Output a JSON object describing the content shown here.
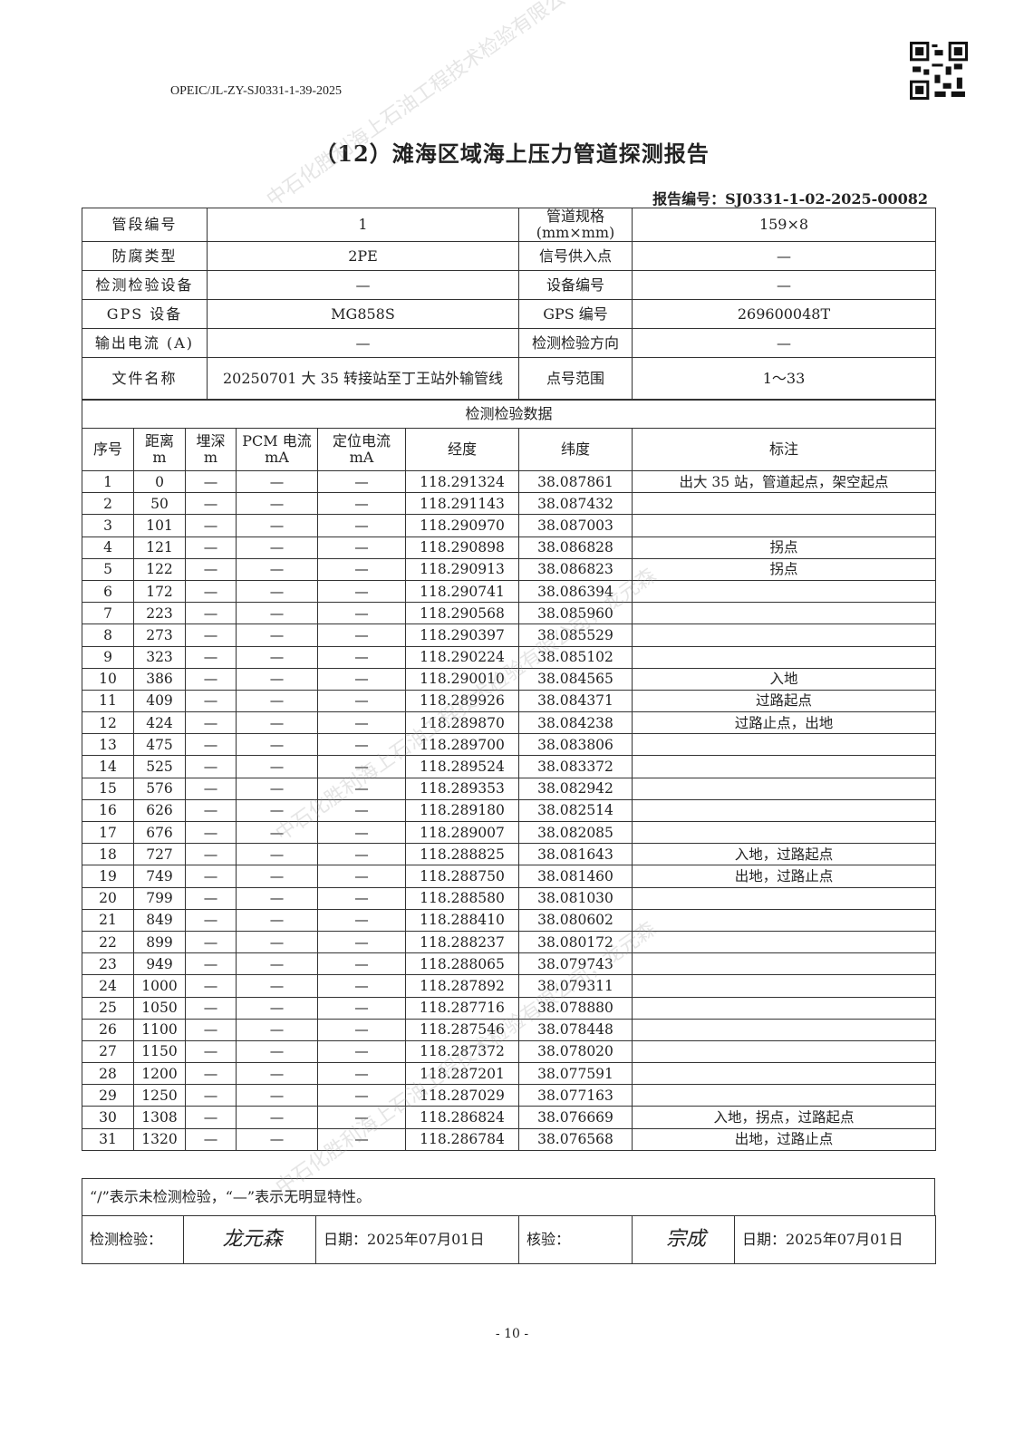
{
  "doc_code": "OPEIC/JL-ZY-SJ0331-1-39-2025",
  "title": "（12）滩海区域海上压力管道探测报告",
  "report_no": "报告编号：SJ0331-1-02-2025-00082",
  "info": [
    [
      "管段编号",
      "1",
      "管道规格(mm×mm)",
      "159×8"
    ],
    [
      "防腐类型",
      "2PE",
      "信号供入点",
      "—"
    ],
    [
      "检测检验设备",
      "—",
      "设备编号",
      "—"
    ],
    [
      "GPS 设备",
      "MG858S",
      "GPS 编号",
      "269600048T"
    ],
    [
      "输出电流 (A)",
      "—",
      "检测检验方向",
      "—"
    ],
    [
      "文件名称",
      "20250701 大 35 转接站至丁王站外输管线",
      "点号范围",
      "1～33"
    ]
  ],
  "section_title": "检测检验数据",
  "headers": [
    "序号",
    "距离\nm",
    "埋深\nm",
    "PCM 电流\nmA",
    "定位电流\nmA",
    "经度",
    "纬度",
    "标注"
  ],
  "rows": [
    [
      "1",
      "0",
      "—",
      "—",
      "—",
      "118.291324",
      "38.087861",
      "出大 35 站，管道起点，架空起点"
    ],
    [
      "2",
      "50",
      "—",
      "—",
      "—",
      "118.291143",
      "38.087432",
      ""
    ],
    [
      "3",
      "101",
      "—",
      "—",
      "—",
      "118.290970",
      "38.087003",
      ""
    ],
    [
      "4",
      "121",
      "—",
      "—",
      "—",
      "118.290898",
      "38.086828",
      "拐点"
    ],
    [
      "5",
      "122",
      "—",
      "—",
      "—",
      "118.290913",
      "38.086823",
      "拐点"
    ],
    [
      "6",
      "172",
      "—",
      "—",
      "—",
      "118.290741",
      "38.086394",
      ""
    ],
    [
      "7",
      "223",
      "—",
      "—",
      "—",
      "118.290568",
      "38.085960",
      ""
    ],
    [
      "8",
      "273",
      "—",
      "—",
      "—",
      "118.290397",
      "38.085529",
      ""
    ],
    [
      "9",
      "323",
      "—",
      "—",
      "—",
      "118.290224",
      "38.085102",
      ""
    ],
    [
      "10",
      "386",
      "—",
      "—",
      "—",
      "118.290010",
      "38.084565",
      "入地"
    ],
    [
      "11",
      "409",
      "—",
      "—",
      "—",
      "118.289926",
      "38.084371",
      "过路起点"
    ],
    [
      "12",
      "424",
      "—",
      "—",
      "—",
      "118.289870",
      "38.084238",
      "过路止点，出地"
    ],
    [
      "13",
      "475",
      "—",
      "—",
      "—",
      "118.289700",
      "38.083806",
      ""
    ],
    [
      "14",
      "525",
      "—",
      "—",
      "—",
      "118.289524",
      "38.083372",
      ""
    ],
    [
      "15",
      "576",
      "—",
      "—",
      "—",
      "118.289353",
      "38.082942",
      ""
    ],
    [
      "16",
      "626",
      "—",
      "—",
      "—",
      "118.289180",
      "38.082514",
      ""
    ],
    [
      "17",
      "676",
      "—",
      "—",
      "—",
      "118.289007",
      "38.082085",
      ""
    ],
    [
      "18",
      "727",
      "—",
      "—",
      "—",
      "118.288825",
      "38.081643",
      "入地，过路起点"
    ],
    [
      "19",
      "749",
      "—",
      "—",
      "—",
      "118.288750",
      "38.081460",
      "出地，过路止点"
    ],
    [
      "20",
      "799",
      "—",
      "—",
      "—",
      "118.288580",
      "38.081030",
      ""
    ],
    [
      "21",
      "849",
      "—",
      "—",
      "—",
      "118.288410",
      "38.080602",
      ""
    ],
    [
      "22",
      "899",
      "—",
      "—",
      "—",
      "118.288237",
      "38.080172",
      ""
    ],
    [
      "23",
      "949",
      "—",
      "—",
      "—",
      "118.288065",
      "38.079743",
      ""
    ],
    [
      "24",
      "1000",
      "—",
      "—",
      "—",
      "118.287892",
      "38.079311",
      ""
    ],
    [
      "25",
      "1050",
      "—",
      "—",
      "—",
      "118.287716",
      "38.078880",
      ""
    ],
    [
      "26",
      "1100",
      "—",
      "—",
      "—",
      "118.287546",
      "38.078448",
      ""
    ],
    [
      "27",
      "1150",
      "—",
      "—",
      "—",
      "118.287372",
      "38.078020",
      ""
    ],
    [
      "28",
      "1200",
      "—",
      "—",
      "—",
      "118.287201",
      "38.077591",
      ""
    ],
    [
      "29",
      "1250",
      "—",
      "—",
      "—",
      "118.287029",
      "38.077163",
      ""
    ],
    [
      "30",
      "1308",
      "—",
      "—",
      "—",
      "118.286824",
      "38.076669",
      "入地，拐点，过路起点"
    ],
    [
      "31",
      "1320",
      "—",
      "—",
      "—",
      "118.286784",
      "38.076568",
      "出地，过路止点"
    ]
  ],
  "note": "“/”表示未检测检验，“—”表示无明显特性。",
  "sign": {
    "inspect_label": "检测检验：",
    "inspector_signature": "龙元森",
    "date1": "日期：2025年07月01日",
    "review_label": "核验：",
    "reviewer_signature": "宗成",
    "date2": "日期：2025年07月01日"
  },
  "watermark": "中石化胜利海上石油工程技术检验有限公司，龙元森",
  "page_no": "- 10 -"
}
